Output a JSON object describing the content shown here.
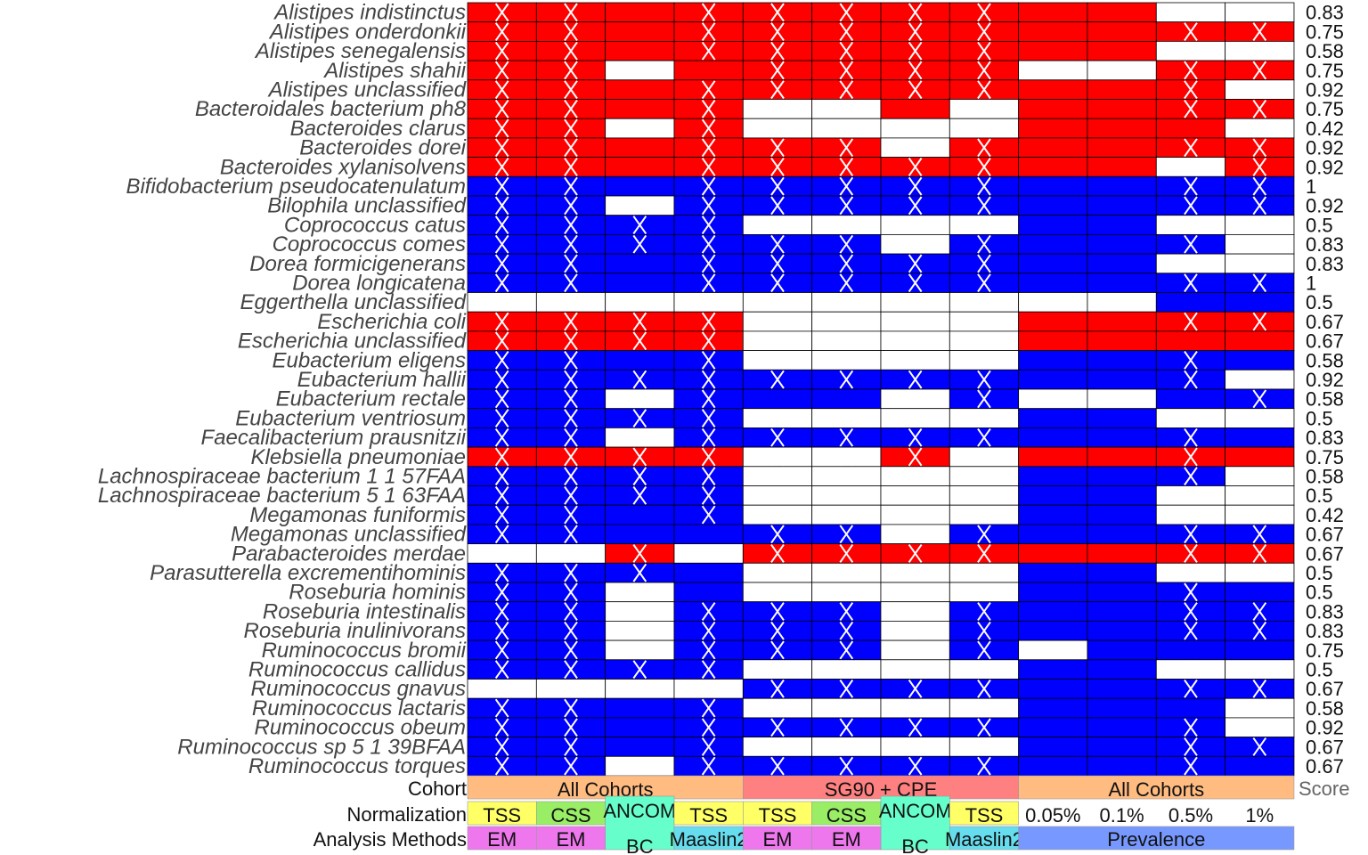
{
  "chart_data": {
    "type": "heatmap",
    "legend_colors": {
      "enriched": "#ff0000",
      "depleted": "#0000ff",
      "none": "#ffffff",
      "mark": "#ffffff"
    },
    "rows": [
      {
        "name": "Alistipes indistinctus",
        "score": "0.83"
      },
      {
        "name": "Alistipes onderdonkii",
        "score": "0.75"
      },
      {
        "name": "Alistipes senegalensis",
        "score": "0.58"
      },
      {
        "name": "Alistipes shahii",
        "score": "0.75"
      },
      {
        "name": "Alistipes unclassified",
        "score": "0.92"
      },
      {
        "name": "Bacteroidales bacterium ph8",
        "score": "0.75"
      },
      {
        "name": "Bacteroides clarus",
        "score": "0.42"
      },
      {
        "name": "Bacteroides dorei",
        "score": "0.92"
      },
      {
        "name": "Bacteroides xylanisolvens",
        "score": "0.92"
      },
      {
        "name": "Bifidobacterium pseudocatenulatum",
        "score": "1"
      },
      {
        "name": "Bilophila unclassified",
        "score": "0.92"
      },
      {
        "name": "Coprococcus catus",
        "score": "0.5"
      },
      {
        "name": "Coprococcus comes",
        "score": "0.83"
      },
      {
        "name": "Dorea formicigenerans",
        "score": "0.83"
      },
      {
        "name": "Dorea longicatena",
        "score": "1"
      },
      {
        "name": "Eggerthella unclassified",
        "score": "0.5"
      },
      {
        "name": "Escherichia coli",
        "score": "0.67"
      },
      {
        "name": "Escherichia unclassified",
        "score": "0.67"
      },
      {
        "name": "Eubacterium eligens",
        "score": "0.58"
      },
      {
        "name": "Eubacterium hallii",
        "score": "0.92"
      },
      {
        "name": "Eubacterium rectale",
        "score": "0.58"
      },
      {
        "name": "Eubacterium ventriosum",
        "score": "0.5"
      },
      {
        "name": "Faecalibacterium prausnitzii",
        "score": "0.83"
      },
      {
        "name": "Klebsiella pneumoniae",
        "score": "0.75"
      },
      {
        "name": "Lachnospiraceae bacterium 1 1 57FAA",
        "score": "0.58"
      },
      {
        "name": "Lachnospiraceae bacterium 5 1 63FAA",
        "score": "0.5"
      },
      {
        "name": "Megamonas funiformis",
        "score": "0.42"
      },
      {
        "name": "Megamonas unclassified",
        "score": "0.67"
      },
      {
        "name": "Parabacteroides merdae",
        "score": "0.67"
      },
      {
        "name": "Parasutterella excrementihominis",
        "score": "0.5"
      },
      {
        "name": "Roseburia hominis",
        "score": "0.5"
      },
      {
        "name": "Roseburia intestinalis",
        "score": "0.83"
      },
      {
        "name": "Roseburia inulinivorans",
        "score": "0.83"
      },
      {
        "name": "Ruminococcus bromii",
        "score": "0.75"
      },
      {
        "name": "Ruminococcus callidus",
        "score": "0.5"
      },
      {
        "name": "Ruminococcus gnavus",
        "score": "0.67"
      },
      {
        "name": "Ruminococcus lactaris",
        "score": "0.58"
      },
      {
        "name": "Ruminococcus obeum",
        "score": "0.92"
      },
      {
        "name": "Ruminococcus sp 5 1 39BFAA",
        "score": "0.67"
      },
      {
        "name": "Ruminococcus torques",
        "score": "0.67"
      }
    ],
    "cells": [
      "RRRRRRRRRR00",
      "RRRRRRRRRRRR",
      "RRRRRRRRRR00",
      "RR0RRRRR00RR",
      "RRRRRRRRRRR0",
      "RRRR00R0RRRR",
      "RR0R0000RRR0",
      "RRRRRR0RRRRR",
      "RRRRRRRRRR0R",
      "BBBBBBBBBBBB",
      "BB0BBBBBBBBB",
      "BBBB0000BB00",
      "BBBBBB0BBBB0",
      "BBBBBBBBBB00",
      "BBBBBBBBBBBB",
      "0000000000BB",
      "RRRR0000RRRR",
      "RRRR0000RRRR",
      "BBBB0000BBBB",
      "BBBBBBBBBBB0",
      "BB0BBB0B00BB",
      "BBBB0000BB00",
      "BB0BBBBBBBBB",
      "RRRR00R0RRRR",
      "BBBB0000BBB0",
      "BBBB0000BB00",
      "BBBB0000BB00",
      "BBBBBB0BBBBB",
      "00R0RRRRRRRR",
      "BBBB0000BB00",
      "BB0B0000BBBB",
      "BB0BBB0BBBBB",
      "BB0BBB0BBBBB",
      "BB0BBB0B0BBB",
      "BBBB0000BB00",
      "0000BBBBBBBB",
      "BBBB0000BBB0",
      "BBBBBBBBBBB0",
      "BBBB0000BBBB",
      "BB0BBBBBBBBB"
    ],
    "marks": [
      "110111110000",
      "110111110011",
      "110111110000",
      "110011110011",
      "110111110010",
      "110100000011",
      "110100000000",
      "110111010011",
      "110111110001",
      "110111110011",
      "110111110011",
      "111100000000",
      "111111010010",
      "110111110000",
      "110111110011",
      "000000000000",
      "111100000011",
      "111100000000",
      "110100000010",
      "111111110010",
      "110100010001",
      "111100000010",
      "110111110010",
      "111111100010",
      "111100000010",
      "111100000000",
      "110100000000",
      "110011010011",
      "001011110011",
      "111000000010",
      "110000000010",
      "110111010011",
      "110111010011",
      "110111010000",
      "111100000010",
      "000011110011",
      "110100000000",
      "110111110010",
      "110100000011",
      "110111110010"
    ],
    "columns": {
      "cohort": [
        {
          "label": "All Cohorts",
          "span": 4,
          "color": "#ffbb80"
        },
        {
          "label": "SG90 + CPE",
          "span": 4,
          "color": "#ff8080"
        },
        {
          "label": "All Cohorts",
          "span": 4,
          "color": "#ffbb80"
        }
      ],
      "normalization": [
        {
          "label": "TSS",
          "span": 1,
          "color": "#ffff66",
          "type": "box"
        },
        {
          "label": "CSS",
          "span": 1,
          "color": "#99ee66",
          "type": "box"
        },
        {
          "label": "ANCOM",
          "span": 1,
          "color": "#66ffcc",
          "type": "tall",
          "overlay": "ANCOM"
        },
        {
          "label": "TSS",
          "span": 1,
          "color": "#ffff66",
          "type": "box"
        },
        {
          "label": "TSS",
          "span": 1,
          "color": "#ffff66",
          "type": "box"
        },
        {
          "label": "CSS",
          "span": 1,
          "color": "#99ee66",
          "type": "box"
        },
        {
          "label": "ANCOM",
          "span": 1,
          "color": "#66ffcc",
          "type": "tall",
          "overlay": "ANCOM"
        },
        {
          "label": "TSS",
          "span": 1,
          "color": "#ffff66",
          "type": "box"
        },
        {
          "label": "0.05%",
          "span": 1,
          "color": "#ffffff",
          "type": "plain"
        },
        {
          "label": "0.1%",
          "span": 1,
          "color": "#ffffff",
          "type": "plain"
        },
        {
          "label": "0.5%",
          "span": 1,
          "color": "#ffffff",
          "type": "plain"
        },
        {
          "label": "1%",
          "span": 1,
          "color": "#ffffff",
          "type": "plain"
        }
      ],
      "method": [
        {
          "label": "EM",
          "span": 1,
          "color": "#ee77ee"
        },
        {
          "label": "EM",
          "span": 1,
          "color": "#ee77ee"
        },
        {
          "label": "BC",
          "span": 1,
          "color": "#66ffcc"
        },
        {
          "label": "Maaslin2",
          "span": 1,
          "color": "#66ddee"
        },
        {
          "label": "EM",
          "span": 1,
          "color": "#ee77ee"
        },
        {
          "label": "EM",
          "span": 1,
          "color": "#ee77ee"
        },
        {
          "label": "BC",
          "span": 1,
          "color": "#66ffcc"
        },
        {
          "label": "Maaslin2",
          "span": 1,
          "color": "#66ddee"
        },
        {
          "label": "Prevalence",
          "span": 4,
          "color": "#7799ff"
        }
      ]
    },
    "annotation_labels": {
      "cohort": "Cohort",
      "normalization": "Normalization",
      "method": "Analysis Methods",
      "score": "Score"
    }
  }
}
